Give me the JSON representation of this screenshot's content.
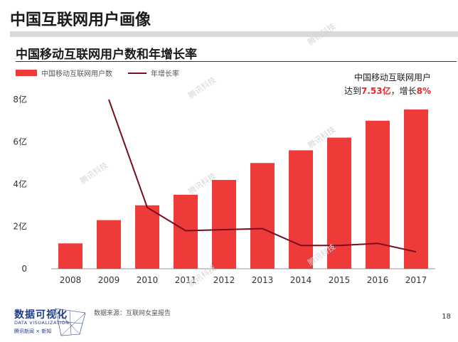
{
  "page": {
    "title": "中国互联网用户画像",
    "page_number": "18",
    "source": "数据来源：互联网女皇报告"
  },
  "chart_title": "中国移动互联网用户数和年增长率",
  "legend": {
    "bar_label": "中国移动互联网用户数",
    "line_label": "年增长率"
  },
  "annotation": {
    "line1": "中国移动互联网用户",
    "prefix": "达到",
    "value": "7.53亿",
    "middle": "，增长",
    "growth": "8%"
  },
  "logo": {
    "main": "数据可视化",
    "sub": "DATA VISUALIZATION",
    "brand": "腾讯新闻 × 新知"
  },
  "watermark_text": "腾讯科技",
  "colors": {
    "bar": "#ef3a3a",
    "line": "#7a0c1e",
    "highlight": "#e8262e"
  },
  "chart_data": {
    "type": "bar",
    "categories": [
      "2008",
      "2009",
      "2010",
      "2011",
      "2012",
      "2013",
      "2014",
      "2015",
      "2016",
      "2017"
    ],
    "series": [
      {
        "name": "中国移动互联网用户数",
        "type": "bar",
        "values": [
          1.2,
          2.3,
          3.0,
          3.5,
          4.2,
          5.0,
          5.6,
          6.2,
          7.0,
          7.53
        ]
      },
      {
        "name": "年增长率",
        "type": "line",
        "values": [
          null,
          8.0,
          2.9,
          1.8,
          1.85,
          1.9,
          1.1,
          1.1,
          1.2,
          0.8
        ]
      }
    ],
    "yticks": [
      "0",
      "2亿",
      "4亿",
      "6亿",
      "8亿"
    ],
    "ylim": [
      0,
      8
    ],
    "grid": false
  }
}
